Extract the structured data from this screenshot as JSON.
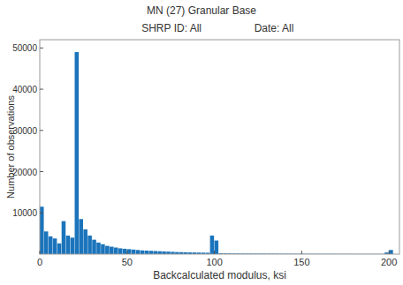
{
  "chart_data": {
    "type": "histogram",
    "title": "MN (27) Granular Base",
    "subtitle": [
      "SHRP ID: All",
      "Date: All"
    ],
    "x_label": "Backcalculated modulus, ksi",
    "y_label": "Number of observations",
    "color": "#1b74bb",
    "bins": [
      0,
      2.5,
      5,
      7.5,
      10,
      12.5,
      15,
      17.5,
      20,
      22.5,
      25,
      27.5,
      30,
      32.5,
      35,
      37.5,
      40,
      42.5,
      45,
      47.5,
      50,
      52.5,
      55,
      57.5,
      60,
      62.5,
      65,
      67.5,
      70,
      72.5,
      75,
      77.5,
      80,
      82.5,
      85,
      87.5,
      90,
      92.5,
      95,
      97.5,
      100,
      102.5,
      105,
      107.5,
      110,
      112.5,
      115,
      117.5,
      120,
      122.5,
      125,
      127.5,
      130,
      132.5,
      135,
      137.5,
      140,
      142.5,
      145,
      147.5,
      150,
      152.5,
      155,
      157.5,
      160,
      162.5,
      165,
      167.5,
      170,
      172.5,
      175,
      177.5,
      180,
      182.5,
      185,
      187.5,
      190,
      192.5,
      195,
      197.5,
      200,
      202.5,
      205
    ],
    "values": [
      11500,
      5500,
      4300,
      3800,
      2600,
      8000,
      4500,
      4000,
      49000,
      8500,
      6000,
      4500,
      3500,
      2800,
      2400,
      2000,
      1800,
      1600,
      1400,
      1300,
      1200,
      1100,
      1000,
      900,
      850,
      800,
      750,
      700,
      650,
      600,
      550,
      500,
      480,
      450,
      420,
      400,
      380,
      360,
      340,
      4500,
      3300,
      200,
      180,
      170,
      160,
      150,
      145,
      140,
      135,
      130,
      125,
      120,
      115,
      110,
      105,
      100,
      95,
      90,
      88,
      85,
      82,
      80,
      78,
      75,
      72,
      70,
      68,
      65,
      62,
      60,
      58,
      55,
      52,
      50,
      50,
      48,
      46,
      45,
      60,
      400,
      1000,
      0
    ],
    "xlim": [
      0,
      206
    ],
    "xticks": [
      0,
      50,
      100,
      150,
      200
    ],
    "ylim": [
      0,
      52000
    ],
    "yticks": [
      10000,
      20000,
      30000,
      40000,
      50000
    ]
  }
}
